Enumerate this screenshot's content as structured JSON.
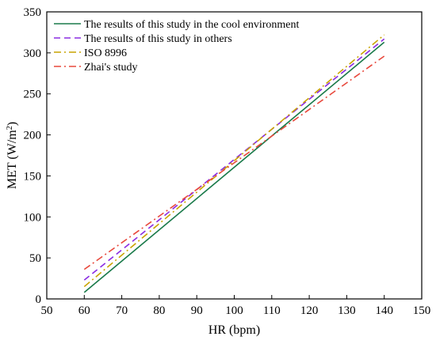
{
  "chart_data": {
    "type": "line",
    "xlabel": "HR (bpm)",
    "ylabel_main": "MET (W/m",
    "ylabel_sup": "2",
    "ylabel_tail": ")",
    "xlim": [
      50,
      150
    ],
    "ylim": [
      0,
      350
    ],
    "xticks": [
      50,
      60,
      70,
      80,
      90,
      100,
      110,
      120,
      130,
      140,
      150
    ],
    "yticks": [
      0,
      50,
      100,
      150,
      200,
      250,
      300,
      350
    ],
    "grid": false,
    "legend_position": "top-left",
    "series": [
      {
        "name": "The results of this study in the cool environment",
        "color": "#1a7a4a",
        "dash": "solid",
        "x": [
          60,
          140
        ],
        "y": [
          8,
          313
        ]
      },
      {
        "name": "The results of this study in others",
        "color": "#8a2be2",
        "dash": "dash",
        "x": [
          60,
          140
        ],
        "y": [
          23,
          317
        ]
      },
      {
        "name": "ISO 8996",
        "color": "#c9a400",
        "dash": "dashdot",
        "x": [
          60,
          140
        ],
        "y": [
          15,
          322
        ]
      },
      {
        "name": "Zhai's study",
        "color": "#e8483c",
        "dash": "dashdot",
        "x": [
          60,
          140
        ],
        "y": [
          36,
          296
        ]
      }
    ]
  }
}
